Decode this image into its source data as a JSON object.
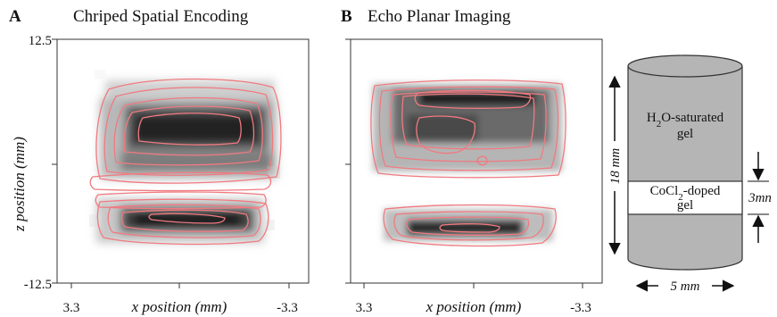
{
  "panels": [
    {
      "letter": "A",
      "title": "Chriped Spatial Encoding",
      "y_axis_label": "z position (mm)",
      "y_tick_top": "12.5",
      "y_tick_bottom": "-12.5",
      "x_axis_label": "x position (mm)",
      "x_tick_left": "3.3",
      "x_tick_right": "-3.3"
    },
    {
      "letter": "B",
      "title": "Echo Planar Imaging",
      "x_axis_label": "x position (mm)",
      "x_tick_left": "3.3",
      "x_tick_right": "-3.3"
    }
  ],
  "phantom": {
    "upper_label_line1_main": "H",
    "upper_label_line1_sub": "2",
    "upper_label_line1_rest": "O-saturated",
    "upper_label_line2": "gel",
    "lower_label_line1_main": "CoCl",
    "lower_label_line1_sub": "2",
    "lower_label_line1_rest": "-doped",
    "lower_label_line2": "gel",
    "height_label": "18 mm",
    "layer_label": "3mn",
    "width_label": "5 mm",
    "cylinder_color": "#b5b5b5",
    "contour_color": "#f07a80"
  }
}
